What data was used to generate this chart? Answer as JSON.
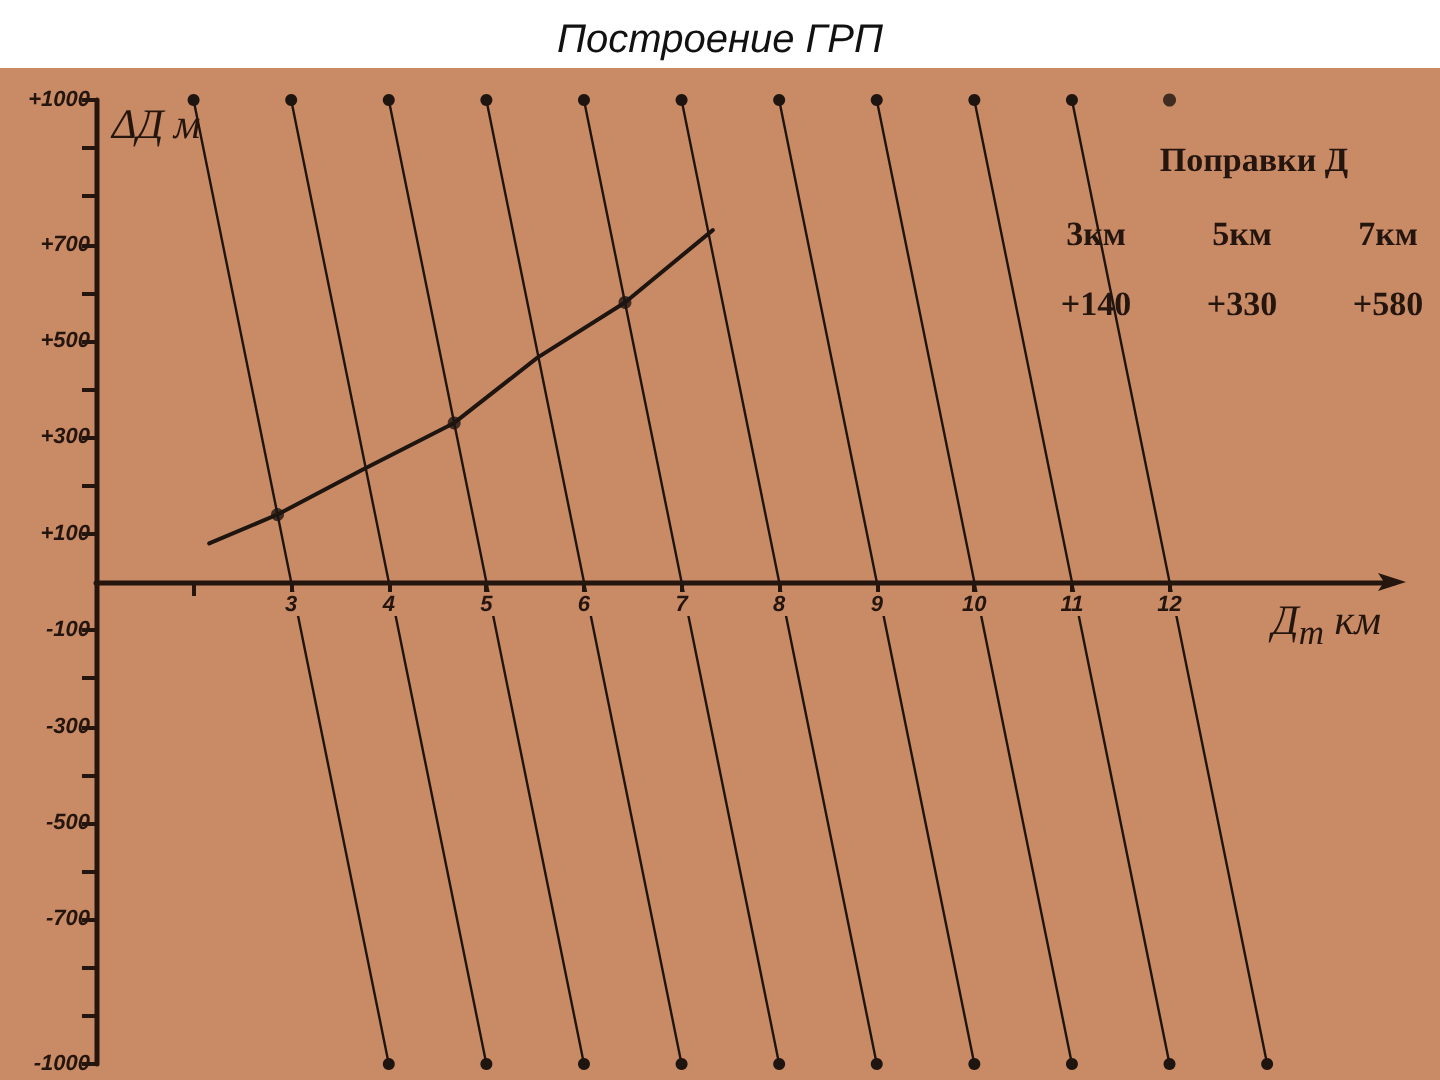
{
  "chart_data": {
    "type": "line",
    "title": "Построение ГРП",
    "xlabel": "Д$_{т}$ км",
    "ylabel": "ΔД м",
    "annotations": [
      "Поправки Д",
      "3км",
      "5км",
      "7км",
      "+140",
      "+330",
      "+580"
    ],
    "xlim": [
      1,
      14.3
    ],
    "xticks": [
      {
        "value": 2,
        "label": null
      },
      3,
      4,
      5,
      6,
      7,
      8,
      9,
      10,
      11,
      12
    ],
    "ylim": [
      -1000,
      1000
    ],
    "yticks": [
      -1000,
      {
        "value": -900,
        "label": null
      },
      {
        "value": -800,
        "label": null
      },
      -700,
      {
        "value": -600,
        "label": null
      },
      -500,
      {
        "value": -400,
        "label": null
      },
      -300,
      {
        "value": -200,
        "label": null
      },
      -100,
      {
        "value": 100,
        "label": "+100"
      },
      {
        "value": 200,
        "label": null
      },
      {
        "value": 300,
        "label": "+300"
      },
      {
        "value": 400,
        "label": null
      },
      {
        "value": 500,
        "label": "+500"
      },
      {
        "value": 600,
        "label": null
      },
      {
        "value": 700,
        "label": "+700"
      },
      {
        "value": 800,
        "label": null
      },
      {
        "value": 900,
        "label": null
      },
      {
        "value": 1000,
        "label": "+1000"
      }
    ],
    "series": [
      {
        "color": "#1e1410",
        "marker": "none",
        "x": [
          2.16,
          2.86,
          3.72,
          4.67,
          5.52,
          6.42,
          7.32
        ],
        "values": [
          80,
          140,
          232,
          330,
          465,
          580,
          730
        ]
      },
      {
        "type": "scatter",
        "color": "#1e1410",
        "marker": "circle",
        "x": [
          2.86,
          4.67,
          6.42
        ],
        "values": [
          140,
          330,
          580
        ]
      },
      {
        "color": "#1e1410",
        "marker": "circle",
        "x": [
          2,
          4
        ],
        "values": [
          1000,
          -1000
        ]
      },
      {
        "color": "#1e1410",
        "marker": "circle",
        "x": [
          3,
          5
        ],
        "values": [
          1000,
          -1000
        ]
      },
      {
        "color": "#1e1410",
        "marker": "circle",
        "x": [
          4,
          6
        ],
        "values": [
          1000,
          -1000
        ]
      },
      {
        "color": "#1e1410",
        "marker": "circle",
        "x": [
          5,
          7
        ],
        "values": [
          1000,
          -1000
        ]
      },
      {
        "color": "#1e1410",
        "marker": "circle",
        "x": [
          6,
          8
        ],
        "values": [
          1000,
          -1000
        ]
      },
      {
        "color": "#1e1410",
        "marker": "circle",
        "x": [
          7,
          9
        ],
        "values": [
          1000,
          -1000
        ]
      },
      {
        "color": "#1e1410",
        "marker": "circle",
        "x": [
          8,
          10
        ],
        "values": [
          1000,
          -1000
        ]
      },
      {
        "color": "#1e1410",
        "marker": "circle",
        "x": [
          9,
          11
        ],
        "values": [
          1000,
          -1000
        ]
      },
      {
        "color": "#1e1410",
        "marker": "circle",
        "x": [
          10,
          12
        ],
        "values": [
          1000,
          -1000
        ]
      },
      {
        "color": "#1e1410",
        "marker": "circle",
        "x": [
          11,
          13
        ],
        "values": [
          1000,
          -1000
        ]
      },
      {
        "type": "scatter",
        "color": "#1e1410",
        "marker": "circle",
        "x": [
          12
        ],
        "values": [
          1000
        ]
      }
    ]
  }
}
